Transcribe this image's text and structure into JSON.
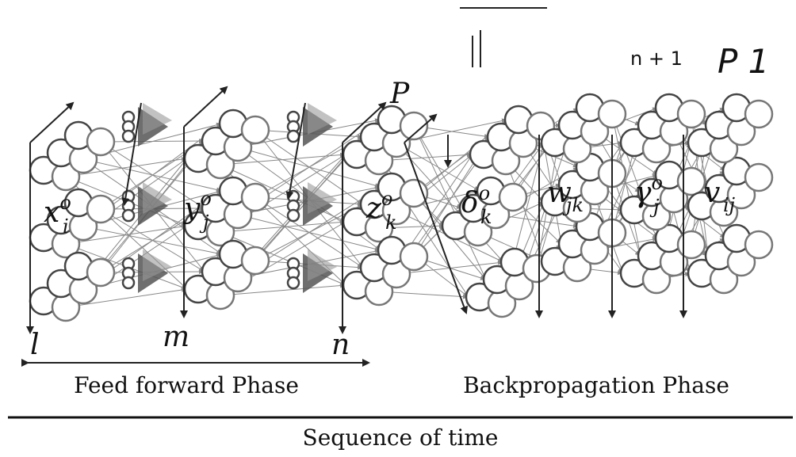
{
  "top_label": {
    "index": "n + 1",
    "phase": "P 1"
  },
  "phase_marker": "P",
  "axes": {
    "l": "l",
    "m": "m",
    "n": "n"
  },
  "symbols": [
    {
      "base": "x",
      "sup": "o",
      "sub": "i"
    },
    {
      "base": "y",
      "sup": "o",
      "sub": "j"
    },
    {
      "base": "z",
      "sup": "o",
      "sub": "k"
    },
    {
      "base": "δ",
      "sup": "o",
      "sub": "k"
    },
    {
      "base": "w",
      "sub": "jk"
    },
    {
      "base": "γ",
      "sup": "o",
      "sub": "j"
    },
    {
      "base": "v",
      "sub": "ij"
    }
  ],
  "phases": {
    "forward": "Feed forward Phase",
    "backward": "Backpropagation Phase"
  },
  "footer": "Sequence of time"
}
